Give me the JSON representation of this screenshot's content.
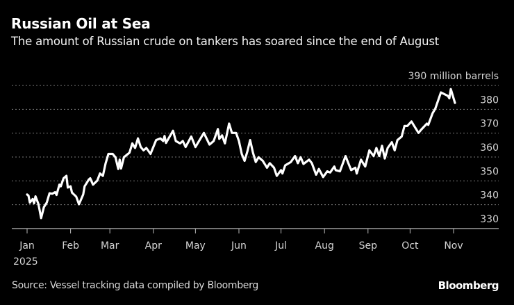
{
  "header": {
    "title": "Russian Oil at Sea",
    "subtitle": "The amount of Russian crude on tankers has soared since the end of August"
  },
  "footer": {
    "source": "Source: Vessel tracking data compiled by Bloomberg",
    "logo": "Bloomberg"
  },
  "colors": {
    "background": "#000000",
    "line": "#ffffff",
    "grid": "#808080",
    "text": "#d4d4d4"
  },
  "chart_data": {
    "type": "line",
    "title": "Russian Oil at Sea",
    "subtitle": "The amount of Russian crude on tankers has soared since the end of August",
    "ylabel": "",
    "y_unit_label": "390 million barrels",
    "ylim": [
      330,
      390
    ],
    "yticks": [
      330,
      340,
      350,
      360,
      370,
      380,
      390
    ],
    "ytick_labels": [
      "330",
      "340",
      "350",
      "360",
      "370",
      "380",
      "390 million barrels"
    ],
    "xlim": [
      "2025-01-01",
      "2025-11-01"
    ],
    "xticks": [
      "2025-01-01",
      "2025-02-01",
      "2025-03-01",
      "2025-04-01",
      "2025-05-01",
      "2025-06-01",
      "2025-07-01",
      "2025-08-01",
      "2025-09-01",
      "2025-10-01",
      "2025-11-01"
    ],
    "xtick_labels": [
      "Jan",
      "Feb",
      "Mar",
      "Apr",
      "May",
      "Jun",
      "Jul",
      "Aug",
      "Sep",
      "Oct",
      "Nov"
    ],
    "xtick_year": "2025",
    "grid": "horizontal dotted",
    "y_axis_side": "right",
    "series": [
      {
        "x": [
          "2025-01-01",
          "2025-01-02",
          "2025-01-03",
          "2025-01-05",
          "2025-01-06",
          "2025-01-07",
          "2025-01-09",
          "2025-01-10",
          "2025-01-11",
          "2025-01-13",
          "2025-01-15",
          "2025-01-17",
          "2025-01-19",
          "2025-01-21",
          "2025-01-22",
          "2025-01-24",
          "2025-01-25",
          "2025-01-27",
          "2025-01-29",
          "2025-01-30",
          "2025-02-01",
          "2025-02-02",
          "2025-02-05",
          "2025-02-07",
          "2025-02-10",
          "2025-02-11",
          "2025-02-14",
          "2025-02-15",
          "2025-02-17",
          "2025-02-20",
          "2025-02-22",
          "2025-02-24",
          "2025-02-26",
          "2025-02-28",
          "2025-03-03",
          "2025-03-05",
          "2025-03-07",
          "2025-03-08",
          "2025-03-09",
          "2025-03-11",
          "2025-03-15",
          "2025-03-17",
          "2025-03-19",
          "2025-03-21",
          "2025-03-23",
          "2025-03-25",
          "2025-03-27",
          "2025-03-30",
          "2025-04-03",
          "2025-04-06",
          "2025-04-08",
          "2025-04-09",
          "2025-04-10",
          "2025-04-15",
          "2025-04-17",
          "2025-04-20",
          "2025-04-22",
          "2025-04-24",
          "2025-04-28",
          "2025-05-01",
          "2025-05-07",
          "2025-05-11",
          "2025-05-14",
          "2025-05-17",
          "2025-05-18",
          "2025-05-20",
          "2025-05-22",
          "2025-05-25",
          "2025-05-27",
          "2025-05-30",
          "2025-06-01",
          "2025-06-03",
          "2025-06-05",
          "2025-06-07",
          "2025-06-09",
          "2025-06-11",
          "2025-06-13",
          "2025-06-15",
          "2025-06-18",
          "2025-06-21",
          "2025-06-23",
          "2025-06-26",
          "2025-06-28",
          "2025-07-01",
          "2025-07-02",
          "2025-07-04",
          "2025-07-08",
          "2025-07-11",
          "2025-07-13",
          "2025-07-15",
          "2025-07-17",
          "2025-07-21",
          "2025-07-23",
          "2025-07-26",
          "2025-07-28",
          "2025-07-31",
          "2025-08-03",
          "2025-08-05",
          "2025-08-08",
          "2025-08-09",
          "2025-08-12",
          "2025-08-16",
          "2025-08-18",
          "2025-08-20",
          "2025-08-23",
          "2025-08-24",
          "2025-08-27",
          "2025-08-30",
          "2025-09-02",
          "2025-09-05",
          "2025-09-07",
          "2025-09-09",
          "2025-09-11",
          "2025-09-13",
          "2025-09-15",
          "2025-09-18",
          "2025-09-20",
          "2025-09-22",
          "2025-09-25",
          "2025-09-27",
          "2025-09-29",
          "2025-10-02",
          "2025-10-04",
          "2025-10-07",
          "2025-10-09",
          "2025-10-13",
          "2025-10-14",
          "2025-10-17",
          "2025-10-19",
          "2025-10-23",
          "2025-10-28",
          "2025-10-29",
          "2025-10-30",
          "2025-11-01",
          "2025-11-02"
        ],
        "y": [
          344.3,
          343.8,
          340.9,
          342.4,
          340.6,
          343.5,
          340.4,
          337.5,
          334.4,
          339.0,
          340.9,
          344.8,
          344.6,
          345.3,
          344.1,
          348.4,
          347.7,
          351.1,
          352.1,
          347.2,
          347.7,
          345.1,
          343.4,
          340.2,
          344.3,
          347.7,
          350.6,
          351.1,
          348.4,
          350.1,
          353.1,
          352.1,
          357.4,
          361.3,
          361.3,
          359.9,
          355.0,
          358.9,
          355.2,
          359.9,
          361.8,
          365.7,
          363.8,
          367.8,
          364.2,
          362.8,
          363.8,
          361.3,
          367.1,
          367.8,
          366.7,
          368.8,
          365.9,
          371.0,
          366.7,
          365.7,
          366.7,
          364.2,
          368.6,
          364.2,
          370.1,
          365.2,
          366.7,
          371.7,
          367.6,
          369.1,
          365.7,
          374.0,
          370.1,
          370.1,
          366.7,
          361.3,
          358.4,
          362.3,
          367.1,
          361.8,
          357.9,
          359.9,
          358.4,
          355.5,
          357.4,
          355.5,
          352.1,
          354.5,
          353.1,
          356.5,
          357.9,
          360.4,
          357.4,
          359.9,
          357.1,
          358.9,
          357.4,
          352.6,
          355.0,
          351.6,
          354.0,
          353.5,
          356.0,
          354.5,
          354.0,
          360.4,
          357.4,
          354.5,
          355.5,
          353.1,
          358.9,
          356.0,
          362.8,
          360.4,
          363.8,
          360.4,
          364.7,
          359.4,
          363.8,
          366.2,
          362.8,
          367.1,
          368.6,
          373.0,
          373.0,
          374.9,
          373.0,
          370.1,
          371.5,
          374.0,
          373.5,
          378.3,
          380.3,
          387.1,
          385.6,
          384.6,
          388.5,
          384.6,
          382.7
        ]
      }
    ]
  }
}
